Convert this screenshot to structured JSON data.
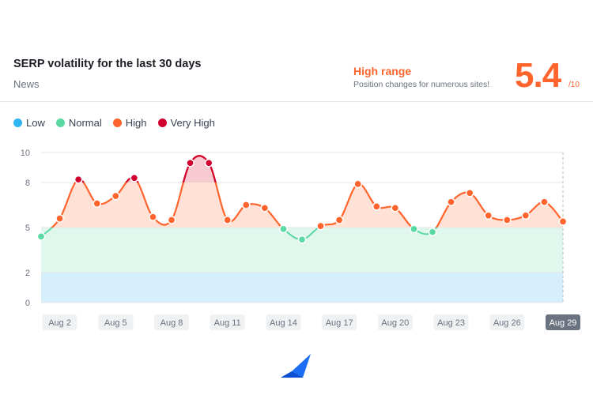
{
  "header": {
    "title": "SERP volatility for the last 30 days",
    "subtitle": "News",
    "range_label": "High range",
    "range_desc": "Position changes for numerous sites!",
    "score": "5.4",
    "score_max": "/10"
  },
  "legend": [
    {
      "label": "Low",
      "color": "#2eb5f2"
    },
    {
      "label": "Normal",
      "color": "#5ad9a4"
    },
    {
      "label": "High",
      "color": "#ff642d"
    },
    {
      "label": "Very High",
      "color": "#d1002f"
    }
  ],
  "chart_data": {
    "type": "area",
    "x": [
      "Aug 1",
      "Aug 2",
      "Aug 3",
      "Aug 4",
      "Aug 5",
      "Aug 6",
      "Aug 7",
      "Aug 8",
      "Aug 9",
      "Aug 10",
      "Aug 11",
      "Aug 12",
      "Aug 13",
      "Aug 14",
      "Aug 15",
      "Aug 16",
      "Aug 17",
      "Aug 18",
      "Aug 19",
      "Aug 20",
      "Aug 21",
      "Aug 22",
      "Aug 23",
      "Aug 24",
      "Aug 25",
      "Aug 26",
      "Aug 27",
      "Aug 28",
      "Aug 29"
    ],
    "values": [
      4.4,
      5.6,
      8.2,
      6.6,
      7.1,
      8.3,
      5.7,
      5.5,
      9.3,
      9.3,
      5.5,
      6.5,
      6.3,
      4.9,
      4.2,
      5.1,
      5.5,
      7.9,
      6.4,
      6.3,
      4.9,
      4.7,
      6.7,
      7.3,
      5.8,
      5.5,
      5.8,
      6.7,
      5.4
    ],
    "x_tick_labels": [
      "Aug 2",
      "Aug 5",
      "Aug 8",
      "Aug 11",
      "Aug 14",
      "Aug 17",
      "Aug 20",
      "Aug 23",
      "Aug 26",
      "Aug 29"
    ],
    "y_ticks": [
      0,
      2,
      5,
      8,
      10
    ],
    "ylim": [
      0,
      10
    ],
    "bands": [
      {
        "name": "Low",
        "from": 0,
        "to": 2,
        "color": "#d6effd"
      },
      {
        "name": "Normal",
        "from": 2,
        "to": 5,
        "color": "#dff7ec"
      },
      {
        "name": "High",
        "from": 5,
        "to": 8,
        "color": "#ffe1d5"
      },
      {
        "name": "Very High",
        "from": 8,
        "to": 10,
        "color": "#f7c9d1"
      }
    ],
    "highlighted_x_label": "Aug 29",
    "grid": true,
    "legend_position": "top-left"
  }
}
